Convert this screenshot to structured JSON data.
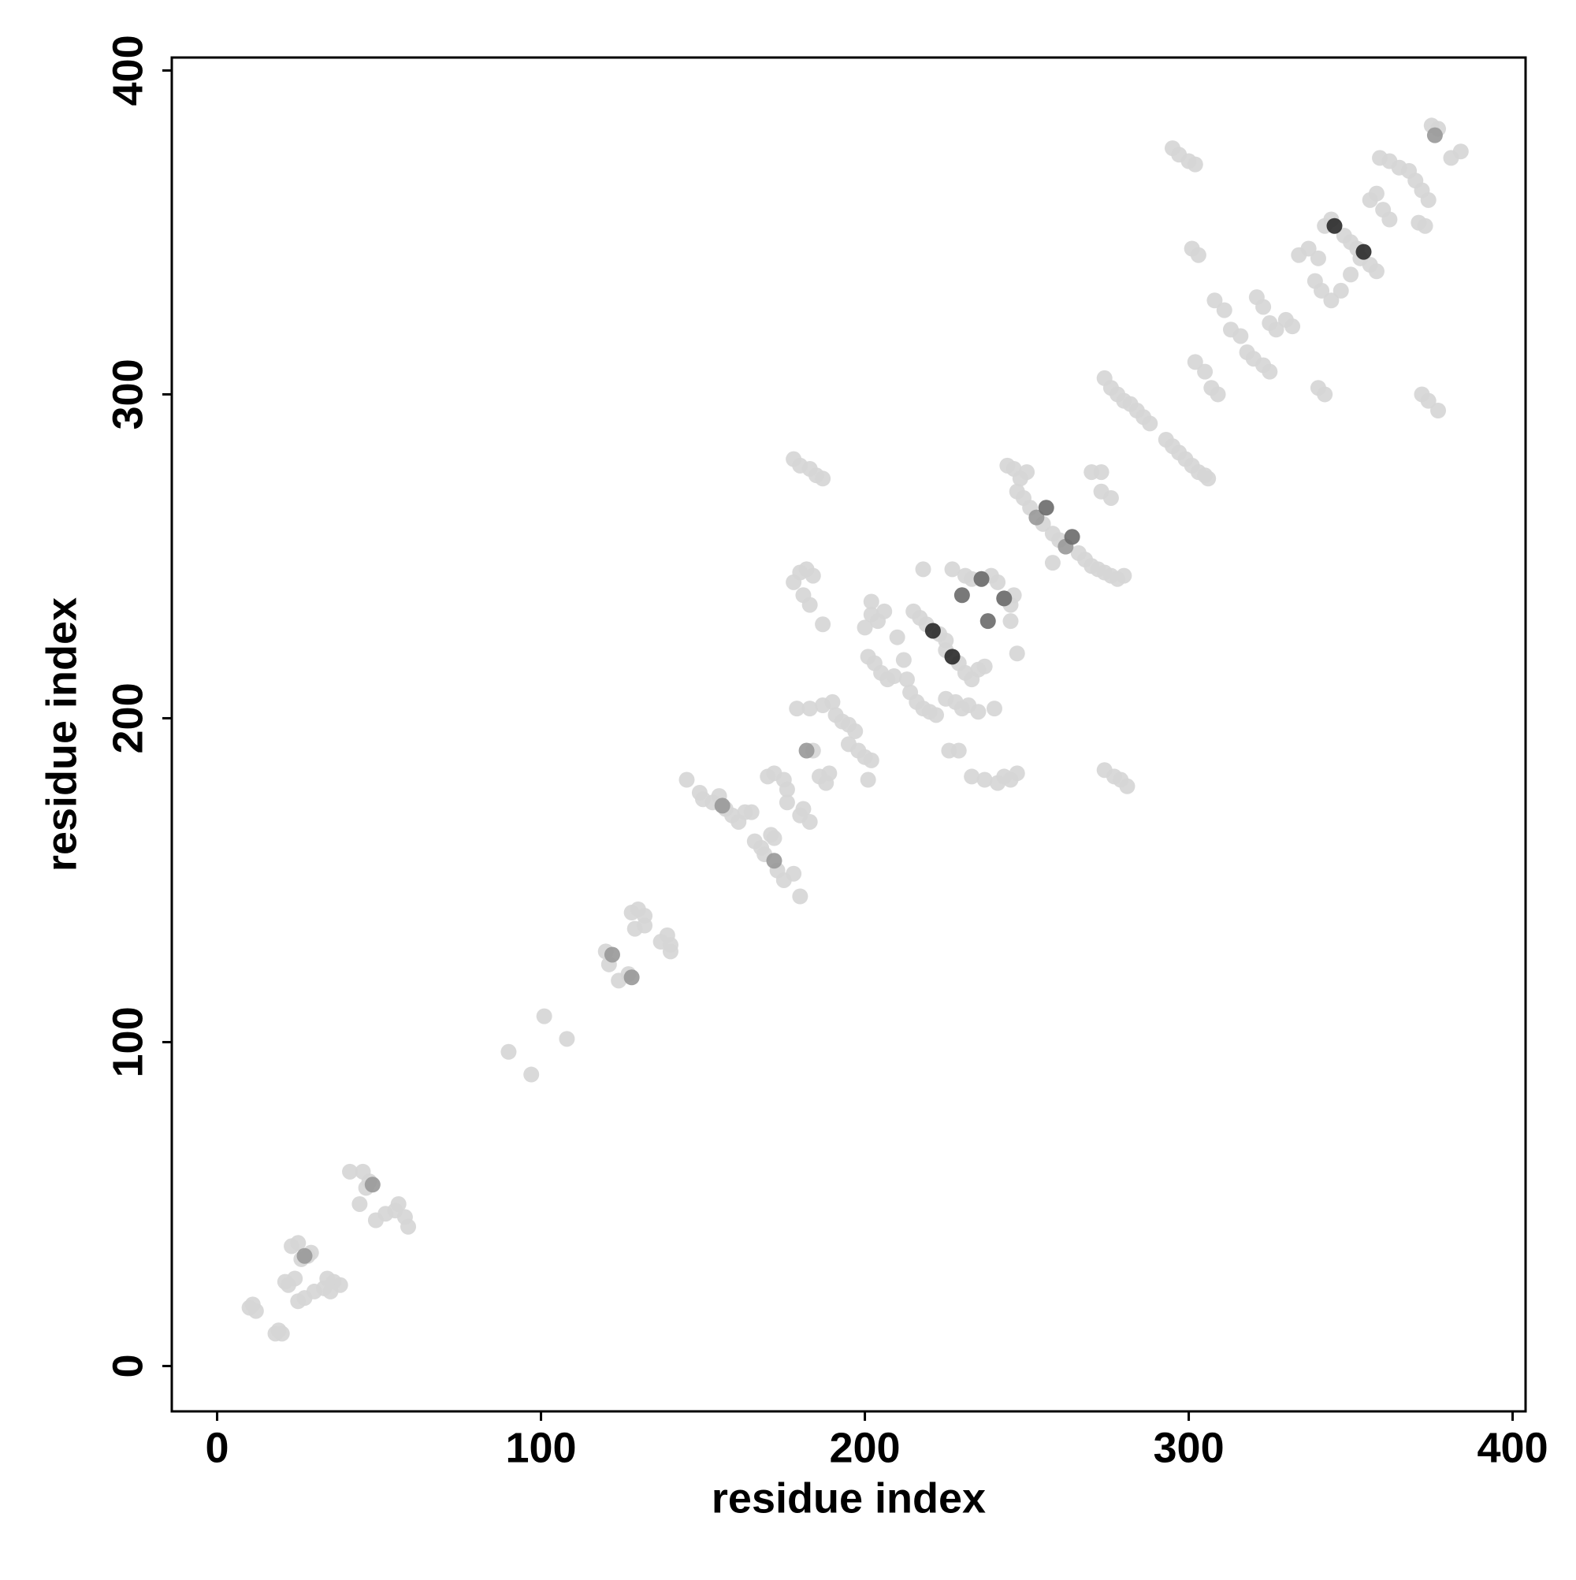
{
  "chart_data": {
    "type": "scatter",
    "x_label": "residue index",
    "y_label": "residue index",
    "xlim": [
      -14,
      404
    ],
    "ylim": [
      -14,
      404
    ],
    "xticks": [
      0,
      100,
      200,
      300,
      400
    ],
    "yticks": [
      0,
      100,
      200,
      300,
      400
    ],
    "grid": false,
    "series": [
      {
        "color": "#d6d6d6",
        "x": [
          10,
          12,
          11,
          18,
          19,
          20,
          21,
          22,
          24,
          23,
          25,
          26,
          28,
          29,
          25,
          27,
          30,
          33,
          34,
          36,
          38,
          35,
          41,
          45,
          46,
          47,
          44,
          49,
          52,
          55,
          56,
          58,
          59,
          90,
          97,
          101,
          108,
          120,
          121,
          124,
          127,
          128,
          130,
          129,
          132,
          132,
          137,
          139,
          140,
          140,
          145,
          149,
          150,
          153,
          155,
          157,
          159,
          161,
          163,
          165,
          166,
          168,
          169,
          171,
          172,
          173,
          175,
          178,
          180,
          170,
          172,
          175,
          176,
          176,
          180,
          181,
          183,
          184,
          186,
          189,
          188,
          187,
          190,
          191,
          193,
          195,
          197,
          195,
          198,
          200,
          202,
          201,
          178,
          180,
          182,
          184,
          181,
          183,
          187,
          178,
          180,
          183,
          185,
          187,
          179,
          183,
          200,
          202,
          204,
          201,
          203,
          205,
          207,
          209,
          202,
          206,
          210,
          212,
          214,
          216,
          218,
          220,
          222,
          215,
          217,
          219,
          223,
          225,
          225,
          229,
          231,
          233,
          235,
          237,
          225,
          228,
          230,
          232,
          235,
          240,
          226,
          229,
          227,
          231,
          233,
          236,
          239,
          241,
          243,
          245,
          246,
          245,
          247,
          233,
          237,
          241,
          243,
          245,
          247,
          218,
          213,
          244,
          246,
          248,
          250,
          247,
          249,
          251,
          255,
          258,
          260,
          266,
          268,
          270,
          272,
          274,
          276,
          278,
          280,
          273,
          276,
          270,
          273,
          258,
          274,
          276,
          278,
          280,
          282,
          284,
          286,
          288,
          293,
          295,
          297,
          299,
          301,
          303,
          305,
          306,
          274,
          277,
          279,
          281,
          295,
          297,
          300,
          302,
          301,
          303,
          302,
          305,
          307,
          309,
          308,
          311,
          313,
          316,
          318,
          320,
          323,
          325,
          321,
          323,
          325,
          327,
          330,
          332,
          334,
          337,
          340,
          342,
          344,
          348,
          350,
          352,
          356,
          358,
          339,
          341,
          344,
          347,
          350,
          353,
          356,
          358,
          360,
          362,
          359,
          362,
          365,
          368,
          370,
          372,
          374,
          371,
          373,
          375,
          377,
          381,
          384,
          372,
          374,
          377,
          340,
          342
        ],
        "values": [
          18,
          17,
          19,
          10,
          11,
          10,
          26,
          25,
          27,
          37,
          38,
          33,
          34,
          35,
          20,
          21,
          23,
          24,
          27,
          26,
          25,
          23,
          60,
          60,
          55,
          57,
          50,
          45,
          47,
          48,
          50,
          46,
          43,
          97,
          90,
          108,
          101,
          128,
          124,
          119,
          121,
          140,
          141,
          135,
          139,
          136,
          131,
          133,
          130,
          128,
          181,
          177,
          175,
          174,
          176,
          172,
          170,
          168,
          171,
          171,
          162,
          160,
          158,
          164,
          163,
          153,
          150,
          152,
          145,
          182,
          183,
          181,
          178,
          174,
          170,
          172,
          168,
          190,
          182,
          183,
          180,
          204,
          205,
          201,
          199,
          198,
          196,
          192,
          190,
          188,
          187,
          181,
          242,
          245,
          246,
          244,
          238,
          235,
          229,
          280,
          278,
          277,
          275,
          274,
          203,
          203,
          228,
          232,
          230,
          219,
          217,
          214,
          212,
          213,
          236,
          233,
          225,
          218,
          208,
          205,
          203,
          202,
          201,
          233,
          231,
          229,
          226,
          224,
          221,
          217,
          214,
          212,
          215,
          216,
          206,
          205,
          203,
          204,
          202,
          203,
          190,
          190,
          246,
          244,
          243,
          243,
          244,
          242,
          237,
          235,
          238,
          230,
          220,
          182,
          181,
          180,
          182,
          181,
          183,
          246,
          212,
          278,
          277,
          274,
          276,
          270,
          268,
          265,
          260,
          257,
          255,
          251,
          249,
          247,
          246,
          245,
          244,
          243,
          244,
          270,
          268,
          276,
          276,
          248,
          305,
          302,
          300,
          298,
          297,
          295,
          293,
          291,
          286,
          284,
          282,
          280,
          278,
          276,
          275,
          274,
          184,
          182,
          181,
          179,
          376,
          374,
          372,
          371,
          345,
          343,
          310,
          307,
          302,
          300,
          329,
          326,
          320,
          318,
          313,
          311,
          309,
          307,
          330,
          327,
          322,
          320,
          323,
          321,
          343,
          345,
          342,
          352,
          354,
          349,
          347,
          345,
          340,
          338,
          335,
          332,
          329,
          332,
          337,
          342,
          360,
          362,
          357,
          354,
          373,
          372,
          370,
          369,
          366,
          363,
          360,
          353,
          352,
          383,
          382,
          373,
          375,
          300,
          298,
          295,
          302,
          300
        ]
      },
      {
        "color": "#9a9a9a",
        "x": [
          27,
          48,
          122,
          128,
          172,
          156,
          182,
          253,
          262,
          376
        ],
        "values": [
          34,
          56,
          127,
          120,
          156,
          173,
          190,
          262,
          253,
          380
        ]
      },
      {
        "color": "#6e6e6e",
        "x": [
          230,
          238,
          256,
          264,
          236,
          243
        ],
        "values": [
          238,
          230,
          265,
          256,
          243,
          237
        ]
      },
      {
        "color": "#2e2e2e",
        "x": [
          221,
          227,
          345,
          354
        ],
        "values": [
          227,
          219,
          352,
          344
        ]
      }
    ]
  }
}
